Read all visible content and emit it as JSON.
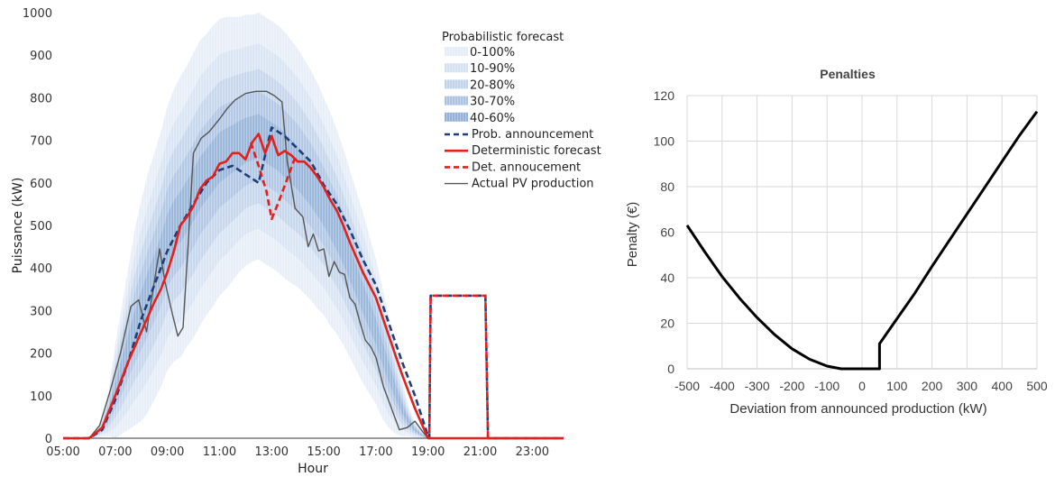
{
  "chart_data": [
    {
      "type": "line",
      "xlabel": "Hour",
      "ylabel": "Puissance (kW)",
      "xlim": [
        5,
        24.2
      ],
      "ylim": [
        0,
        1000
      ],
      "x_ticks": [
        "05:00",
        "07:00",
        "09:00",
        "11:00",
        "13:00",
        "15:00",
        "17:00",
        "19:00",
        "21:00",
        "23:00"
      ],
      "x_tick_values": [
        5,
        7,
        9,
        11,
        13,
        15,
        17,
        19,
        21,
        23
      ],
      "y_ticks": [
        0,
        100,
        200,
        300,
        400,
        500,
        600,
        700,
        800,
        900,
        1000
      ],
      "grid": false,
      "legend_position": "top-right",
      "legend_title": "Probabilistic forecast",
      "band_labels": [
        "0-100%",
        "10-90%",
        "20-80%",
        "30-70%",
        "40-60%"
      ],
      "band_colors": [
        "#e4ecf7",
        "#d3e0f1",
        "#bfd1ea",
        "#a8c0e1",
        "#8fadd6"
      ],
      "band_x": [
        5,
        5.8,
        6,
        6.25,
        6.5,
        6.75,
        7,
        7.25,
        7.5,
        7.75,
        8,
        8.25,
        8.5,
        8.75,
        9,
        9.25,
        9.5,
        9.75,
        10,
        10.25,
        10.5,
        10.75,
        11,
        11.25,
        11.5,
        11.75,
        12,
        12.25,
        12.5,
        12.75,
        13,
        13.25,
        13.5,
        13.75,
        14,
        14.25,
        14.5,
        14.75,
        15,
        15.25,
        15.5,
        15.75,
        16,
        16.25,
        16.5,
        16.75,
        17,
        17.25,
        17.5,
        17.75,
        18,
        18.25,
        18.5,
        18.75,
        19,
        24.2
      ],
      "band_center": [
        0,
        0,
        3,
        8,
        25,
        60,
        110,
        160,
        210,
        260,
        300,
        340,
        380,
        420,
        470,
        500,
        520,
        545,
        570,
        600,
        620,
        640,
        660,
        670,
        680,
        690,
        700,
        705,
        710,
        700,
        690,
        680,
        665,
        650,
        635,
        615,
        595,
        570,
        545,
        515,
        485,
        450,
        410,
        370,
        330,
        290,
        250,
        200,
        155,
        110,
        70,
        40,
        20,
        8,
        0,
        0
      ],
      "band_half_widths": [
        [
          0,
          0,
          2,
          6,
          20,
          55,
          110,
          150,
          190,
          230,
          260,
          280,
          290,
          300,
          310,
          320,
          330,
          330,
          335,
          335,
          330,
          330,
          325,
          320,
          310,
          300,
          295,
          290,
          290,
          290,
          290,
          290,
          290,
          285,
          280,
          275,
          270,
          265,
          255,
          250,
          240,
          230,
          220,
          210,
          200,
          185,
          170,
          155,
          130,
          100,
          65,
          35,
          18,
          7,
          0,
          0
        ],
        [
          0,
          0,
          1.5,
          5,
          16,
          45,
          85,
          115,
          145,
          170,
          190,
          205,
          215,
          225,
          235,
          240,
          245,
          248,
          250,
          250,
          248,
          245,
          242,
          238,
          232,
          225,
          220,
          218,
          218,
          218,
          218,
          218,
          218,
          215,
          212,
          208,
          204,
          198,
          192,
          186,
          180,
          172,
          165,
          158,
          150,
          138,
          126,
          115,
          98,
          75,
          50,
          28,
          14,
          5,
          0,
          0
        ],
        [
          0,
          0,
          1,
          4,
          12,
          33,
          62,
          85,
          105,
          125,
          140,
          150,
          158,
          165,
          172,
          177,
          180,
          182,
          184,
          184,
          182,
          180,
          178,
          175,
          170,
          165,
          160,
          158,
          158,
          158,
          158,
          158,
          158,
          156,
          153,
          150,
          147,
          143,
          138,
          134,
          130,
          124,
          118,
          113,
          107,
          99,
          90,
          82,
          70,
          54,
          36,
          20,
          10,
          4,
          0,
          0
        ],
        [
          0,
          0,
          0.7,
          2.5,
          8,
          22,
          42,
          57,
          70,
          83,
          93,
          100,
          105,
          110,
          115,
          118,
          120,
          121,
          122,
          122,
          121,
          120,
          118,
          116,
          113,
          110,
          107,
          105,
          105,
          105,
          105,
          105,
          105,
          104,
          102,
          100,
          98,
          95,
          92,
          89,
          86,
          82,
          78,
          75,
          71,
          66,
          60,
          55,
          47,
          36,
          24,
          13,
          7,
          3,
          0,
          0
        ],
        [
          0,
          0,
          0.3,
          1.2,
          4,
          11,
          21,
          28,
          35,
          41,
          46,
          50,
          52,
          55,
          57,
          59,
          60,
          60,
          61,
          61,
          60,
          60,
          59,
          58,
          56,
          55,
          53,
          52,
          52,
          52,
          52,
          52,
          52,
          52,
          51,
          50,
          49,
          47,
          46,
          44,
          43,
          41,
          39,
          37,
          35,
          33,
          30,
          27,
          23,
          18,
          12,
          6,
          3,
          1,
          0,
          0
        ]
      ],
      "series": [
        {
          "name": "Prob. announcement",
          "color": "#1f3d7a",
          "style": "dashed",
          "x": [
            5,
            6,
            6.5,
            7,
            7.5,
            8,
            8.5,
            9,
            9.5,
            10,
            10.5,
            11,
            11.5,
            12,
            12.5,
            13,
            13.5,
            14,
            14.5,
            15,
            15.5,
            16,
            16.5,
            17,
            17.5,
            18,
            18.5,
            19,
            19.05,
            19.1,
            21.2,
            21.3,
            24.2
          ],
          "y": [
            0,
            0,
            20,
            90,
            180,
            280,
            360,
            440,
            500,
            550,
            600,
            630,
            640,
            620,
            600,
            730,
            710,
            680,
            650,
            595,
            550,
            490,
            420,
            360,
            270,
            180,
            100,
            5,
            0,
            335,
            335,
            0,
            0
          ]
        },
        {
          "name": "Deterministic forecast",
          "color": "#e2201c",
          "style": "solid",
          "x": [
            5,
            6,
            6.5,
            7,
            7.5,
            8,
            8.5,
            8.75,
            9,
            9.25,
            9.5,
            9.75,
            10,
            10.25,
            10.5,
            10.75,
            11,
            11.25,
            11.5,
            11.75,
            12,
            12.25,
            12.5,
            12.75,
            13,
            13.25,
            13.5,
            13.75,
            14,
            14.25,
            14.5,
            14.75,
            15,
            15.25,
            15.5,
            15.75,
            16,
            16.5,
            17,
            17.5,
            18,
            18.5,
            19,
            24.2
          ],
          "y": [
            0,
            0,
            25,
            100,
            180,
            250,
            320,
            350,
            390,
            440,
            500,
            520,
            545,
            585,
            605,
            615,
            645,
            650,
            670,
            670,
            655,
            695,
            715,
            670,
            710,
            665,
            675,
            665,
            650,
            650,
            635,
            615,
            590,
            560,
            535,
            500,
            460,
            390,
            330,
            240,
            150,
            70,
            0,
            0
          ]
        },
        {
          "name": "Det. annoucement",
          "color": "#e2201c",
          "style": "dashed",
          "x": [
            12.2,
            12.5,
            12.8,
            13,
            13.3,
            13.6,
            13.9
          ],
          "y": [
            695,
            640,
            580,
            515,
            560,
            610,
            660
          ]
        },
        {
          "name": "Actual PV production",
          "color": "#555555",
          "style": "solid",
          "x": [
            5,
            6,
            6.4,
            6.8,
            7.2,
            7.6,
            7.9,
            8.2,
            8.4,
            8.7,
            8.9,
            9.2,
            9.4,
            9.6,
            9.8,
            10,
            10.3,
            10.6,
            11,
            11.3,
            11.6,
            12,
            12.4,
            12.8,
            13.1,
            13.4,
            13.6,
            13.9,
            14.2,
            14.4,
            14.6,
            14.8,
            15,
            15.2,
            15.4,
            15.6,
            15.8,
            16,
            16.2,
            16.4,
            16.6,
            16.8,
            17,
            17.3,
            17.6,
            17.9,
            18.2,
            18.5,
            18.8,
            19,
            24.2
          ],
          "y": [
            0,
            0,
            30,
            110,
            200,
            310,
            325,
            250,
            330,
            445,
            370,
            290,
            240,
            260,
            460,
            670,
            705,
            720,
            750,
            775,
            795,
            810,
            815,
            815,
            805,
            790,
            650,
            540,
            520,
            450,
            480,
            440,
            445,
            380,
            415,
            390,
            385,
            330,
            315,
            270,
            230,
            215,
            190,
            120,
            70,
            20,
            25,
            40,
            15,
            0,
            0
          ]
        }
      ]
    },
    {
      "type": "line",
      "title": "Penalties",
      "xlabel": "Deviation from announced production (kW)",
      "ylabel": "Penalty (€)",
      "xlim": [
        -500,
        500
      ],
      "ylim": [
        0,
        120
      ],
      "x_ticks": [
        -500,
        -400,
        -300,
        -200,
        -100,
        0,
        100,
        200,
        300,
        400,
        500
      ],
      "y_ticks": [
        0,
        20,
        40,
        60,
        80,
        100,
        120
      ],
      "grid": true,
      "series": [
        {
          "color": "#000000",
          "x": [
            -500,
            -450,
            -400,
            -350,
            -300,
            -250,
            -200,
            -150,
            -100,
            -60,
            0,
            50,
            50,
            100,
            150,
            200,
            250,
            300,
            350,
            400,
            450,
            500
          ],
          "y": [
            63,
            51.5,
            40.5,
            31,
            22.5,
            15,
            8.8,
            4.2,
            1.2,
            0,
            0,
            0,
            11,
            22,
            33,
            45,
            56.5,
            68,
            79.5,
            91,
            102.5,
            113
          ]
        }
      ]
    }
  ]
}
